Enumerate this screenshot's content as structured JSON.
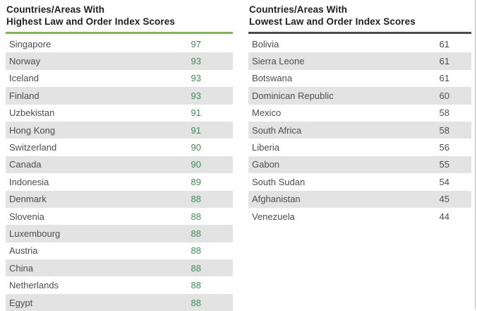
{
  "colors": {
    "green_rule": "#7eb55a",
    "dark_rule": "#4b4b4b",
    "green_score": "#3e8a58",
    "row_shade": "#e3e3e4",
    "title_text": "#212121",
    "body_text": "#4d4d4d",
    "screen_edge": "#b9b9b9"
  },
  "chart_data": [
    {
      "type": "table",
      "title_line1": "Countries/Areas With",
      "title_line2": "Highest Law and Order Index Scores",
      "accent": "green",
      "rows": [
        {
          "country": "Singapore",
          "score": 97
        },
        {
          "country": "Norway",
          "score": 93
        },
        {
          "country": "Iceland",
          "score": 93
        },
        {
          "country": "Finland",
          "score": 93
        },
        {
          "country": "Uzbekistan",
          "score": 91
        },
        {
          "country": "Hong Kong",
          "score": 91
        },
        {
          "country": "Switzerland",
          "score": 90
        },
        {
          "country": "Canada",
          "score": 90
        },
        {
          "country": "Indonesia",
          "score": 89
        },
        {
          "country": "Denmark",
          "score": 88
        },
        {
          "country": "Slovenia",
          "score": 88
        },
        {
          "country": "Luxembourg",
          "score": 88
        },
        {
          "country": "Austria",
          "score": 88
        },
        {
          "country": "China",
          "score": 88
        },
        {
          "country": "Netherlands",
          "score": 88
        },
        {
          "country": "Egypt",
          "score": 88
        }
      ]
    },
    {
      "type": "table",
      "title_line1": "Countries/Areas With",
      "title_line2": "Lowest Law and Order Index Scores",
      "accent": "dark",
      "rows": [
        {
          "country": "Bolivia",
          "score": 61
        },
        {
          "country": "Sierra Leone",
          "score": 61
        },
        {
          "country": "Botswana",
          "score": 61
        },
        {
          "country": "Dominican Republic",
          "score": 60
        },
        {
          "country": "Mexico",
          "score": 58
        },
        {
          "country": "South Africa",
          "score": 58
        },
        {
          "country": "Liberia",
          "score": 56
        },
        {
          "country": "Gabon",
          "score": 55
        },
        {
          "country": "South Sudan",
          "score": 54
        },
        {
          "country": "Afghanistan",
          "score": 45
        },
        {
          "country": "Venezuela",
          "score": 44
        }
      ]
    }
  ]
}
